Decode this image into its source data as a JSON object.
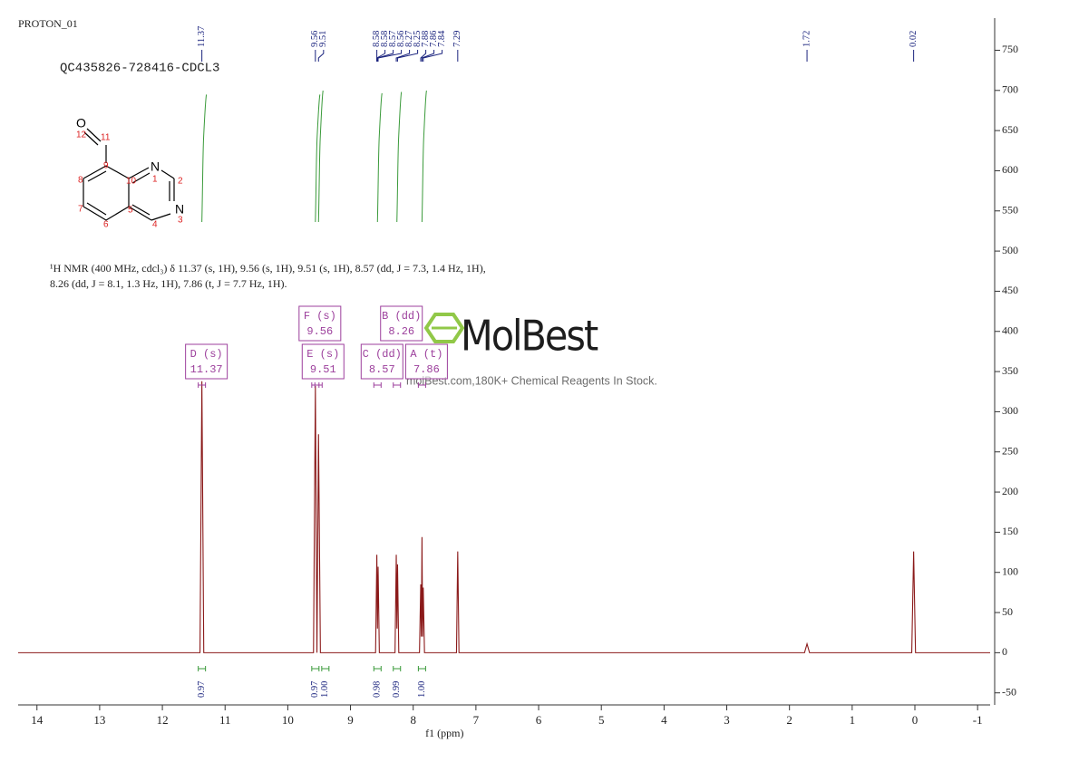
{
  "header": {
    "id": "PROTON_01",
    "sample": "QC435826-728416-CDCL3",
    "description": [
      "¹H NMR (400 MHz, cdcl₃) δ 11.37 (s, 1H), 9.56 (s, 1H), 9.51 (s, 1H), 8.57 (dd, J = 7.3, 1.4 Hz, 1H),",
      "8.26 (dd, J = 8.1, 1.3 Hz, 1H), 7.86 (t, J = 7.7 Hz, 1H)."
    ]
  },
  "structure": {
    "labels": [
      "O",
      "12",
      "11",
      "9",
      "10",
      "N",
      "1",
      "2",
      "N",
      "3",
      "4",
      "5",
      "6",
      "7",
      "8"
    ]
  },
  "watermark": {
    "brand": "MolBest",
    "tagline": "molBest.com,180K+ Chemical Reagents In Stock."
  },
  "chart_data": {
    "type": "nmr",
    "x_label": "f1 (ppm)",
    "xlim": [
      14.3,
      -1.2
    ],
    "xticks": [
      14,
      13,
      12,
      11,
      10,
      9,
      8,
      7,
      6,
      5,
      4,
      3,
      2,
      1,
      0,
      -1
    ],
    "ylim": [
      -65,
      790
    ],
    "yticks": [
      -50,
      0,
      50,
      100,
      150,
      200,
      250,
      300,
      350,
      400,
      450,
      500,
      550,
      600,
      650,
      700,
      750
    ],
    "x": [
      14.3,
      11.4,
      11.37,
      11.34,
      9.59,
      9.56,
      9.535,
      9.51,
      9.48,
      8.6,
      8.58,
      8.57,
      8.56,
      8.54,
      8.29,
      8.27,
      8.26,
      8.25,
      8.23,
      7.9,
      7.88,
      7.87,
      7.86,
      7.85,
      7.84,
      7.82,
      7.31,
      7.29,
      7.27,
      1.76,
      1.72,
      1.68,
      0.05,
      0.02,
      -0.01,
      -1.2
    ],
    "series": [
      {
        "color": "#8b1a1a",
        "values": [
          0,
          0,
          338,
          0,
          0,
          332,
          0,
          272,
          0,
          0,
          122,
          30,
          107,
          0,
          0,
          122,
          30,
          110,
          0,
          0,
          85,
          20,
          144,
          20,
          81,
          0,
          0,
          126,
          0,
          0,
          11,
          0,
          0,
          126,
          0,
          0
        ]
      }
    ],
    "peak_labels": [
      11.37,
      9.56,
      9.51,
      8.58,
      8.58,
      8.57,
      8.56,
      8.27,
      8.25,
      7.88,
      7.86,
      7.84,
      7.29,
      1.72,
      0.02
    ],
    "multiplets": [
      {
        "name": "D (s)",
        "shift": 11.37
      },
      {
        "name": "F (s)",
        "shift": 9.56
      },
      {
        "name": "E (s)",
        "shift": 9.51
      },
      {
        "name": "C (dd)",
        "shift": 8.57
      },
      {
        "name": "B (dd)",
        "shift": 8.26
      },
      {
        "name": "A (t)",
        "shift": 7.86
      }
    ],
    "integrals": {
      "x": [
        11.37,
        9.56,
        9.51,
        8.57,
        8.26,
        7.86
      ],
      "values": [
        0.97,
        0.97,
        1,
        0.98,
        0.99,
        1
      ],
      "value_labels": [
        "0.97",
        "0.97",
        "1.00",
        "0.98",
        "0.99",
        "1.00"
      ]
    }
  }
}
